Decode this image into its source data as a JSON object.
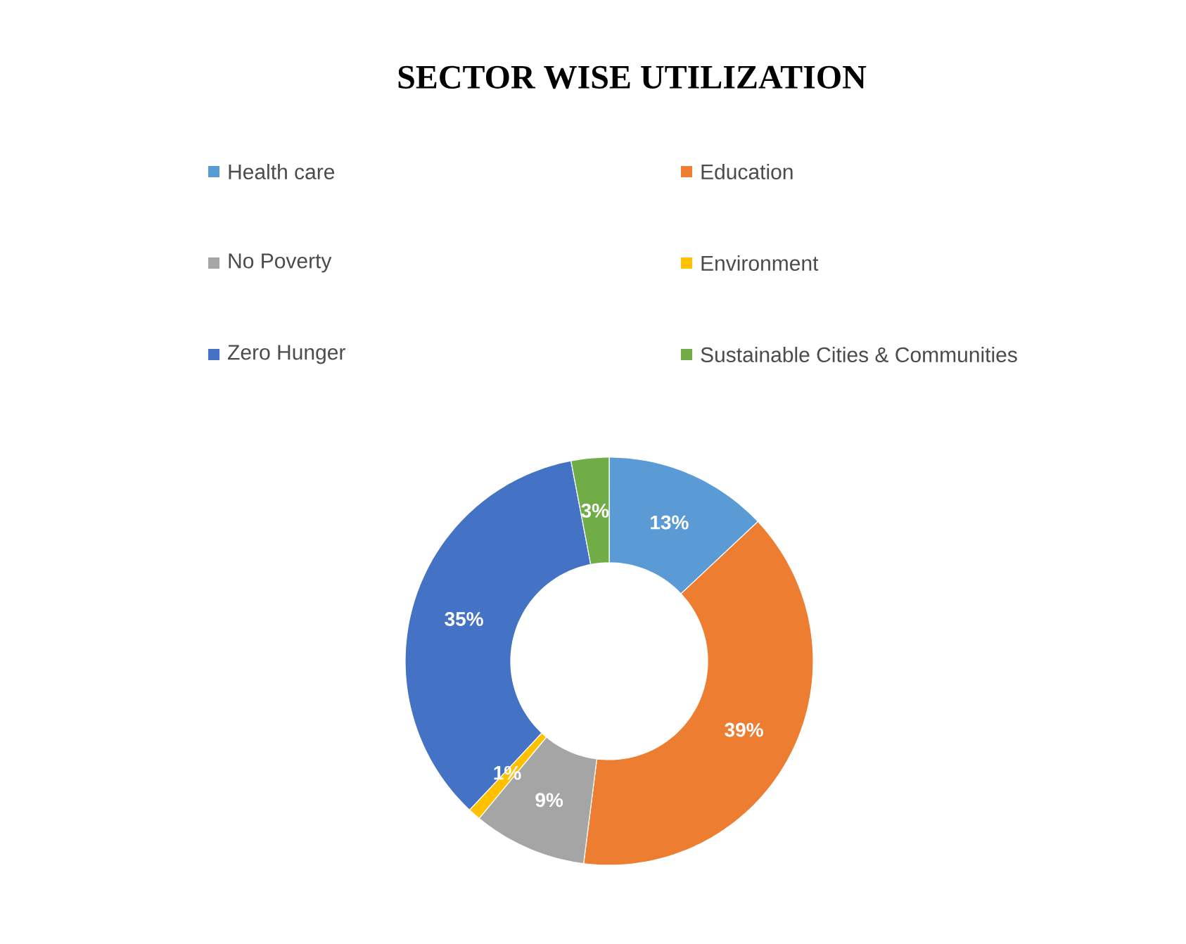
{
  "chart_data": {
    "type": "donut",
    "title": "SECTOR WISE UTILIZATION",
    "categories": [
      "Health care",
      "Education",
      "No Poverty",
      "Environment",
      "Zero Hunger",
      "Sustainable Cities & Communities"
    ],
    "values": [
      13,
      39,
      9,
      1,
      35,
      3
    ],
    "colors": [
      "#5b9bd5",
      "#ed7d31",
      "#a5a5a5",
      "#ffc000",
      "#4472c4",
      "#70ad47"
    ],
    "value_labels": [
      "13%",
      "39%",
      "9%",
      "1%",
      "35%",
      "3%"
    ],
    "legend": "top"
  }
}
